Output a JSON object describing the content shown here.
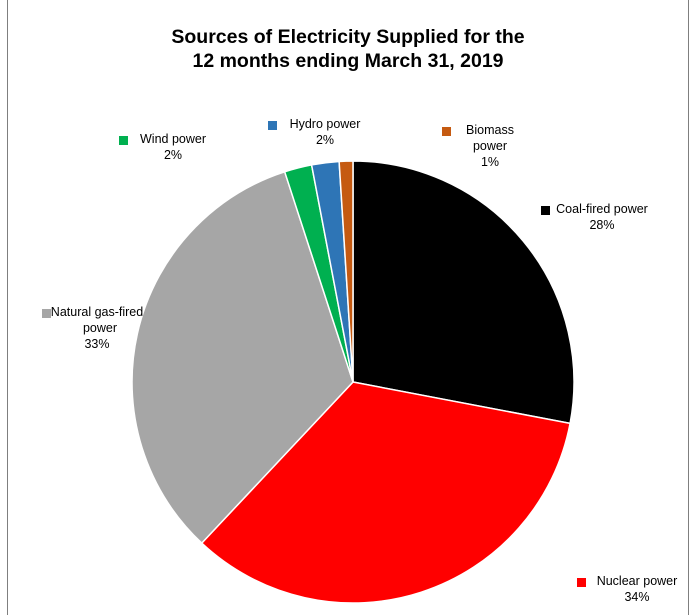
{
  "chart_data": {
    "type": "pie",
    "title": "Sources of Electricity Supplied for the 12 months ending March 31, 2019",
    "title_lines": [
      "Sources of Electricity Supplied for the",
      "12 months ending March 31, 2019"
    ],
    "start_direction": "12 o'clock",
    "direction": "clockwise",
    "slices": [
      {
        "name": "Coal-fired power",
        "label_lines": [
          "Coal-fired power"
        ],
        "value": 28,
        "value_label": "28%",
        "color": "#000000"
      },
      {
        "name": "Nuclear power",
        "label_lines": [
          "Nuclear power"
        ],
        "value": 34,
        "value_label": "34%",
        "color": "#ff0000"
      },
      {
        "name": "Natural gas-fired power",
        "label_lines": [
          "Natural gas-fired",
          "power"
        ],
        "value": 33,
        "value_label": "33%",
        "color": "#a6a6a6"
      },
      {
        "name": "Wind power",
        "label_lines": [
          "Wind power"
        ],
        "value": 2,
        "value_label": "2%",
        "color": "#00b050"
      },
      {
        "name": "Hydro power",
        "label_lines": [
          "Hydro power"
        ],
        "value": 2,
        "value_label": "2%",
        "color": "#2e75b6"
      },
      {
        "name": "Biomass power",
        "label_lines": [
          "Biomass",
          "power"
        ],
        "value": 1,
        "value_label": "1%",
        "color": "#c55a11"
      }
    ]
  }
}
